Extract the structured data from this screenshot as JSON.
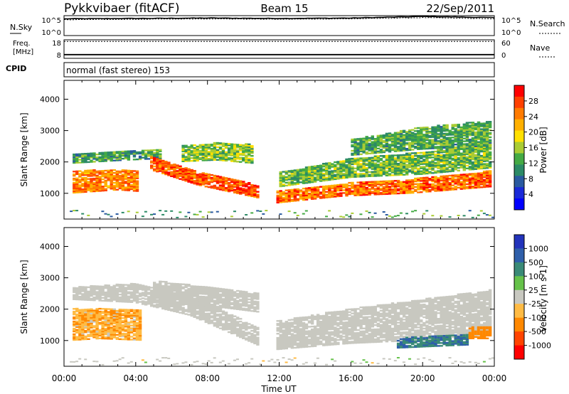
{
  "header": {
    "title": "Pykkvibaer (fitACF)",
    "beam": "Beam 15",
    "date": "22/Sep/2011"
  },
  "sky_panel": {
    "left_label": "N.Sky",
    "right_label": "N.Search",
    "left_ticks": [
      "10^5",
      "10^0"
    ],
    "right_ticks": [
      "10^5",
      "10^0"
    ]
  },
  "freq_panel": {
    "left_label_line1": "Freq.",
    "left_label_line2": "[MHz]",
    "right_label": "Nave",
    "left_ticks": [
      "18",
      "8"
    ],
    "right_ticks": [
      "60",
      "0"
    ]
  },
  "cpid": {
    "label": "CPID",
    "value": "normal (fast stereo) 153"
  },
  "x_axis": {
    "title": "Time UT",
    "ticks": [
      "00:00",
      "04:00",
      "08:00",
      "12:00",
      "16:00",
      "20:00",
      "00:00"
    ]
  },
  "power_colorbar": {
    "label": "Power [dB]",
    "ticks": [
      "28",
      "24",
      "20",
      "16",
      "12",
      "8",
      "4"
    ],
    "colors": [
      "#ff0000",
      "#ff4000",
      "#ff7b00",
      "#ffb000",
      "#ffe000",
      "#aacc33",
      "#44aa44",
      "#2c8a66",
      "#2a5aa0",
      "#1a2ad8",
      "#0000ff"
    ]
  },
  "velocity_colorbar": {
    "label": "Velocity [m s-1]",
    "ticks": [
      "1000",
      "500",
      "100",
      "25",
      "-25",
      "-100",
      "-500",
      "-1000"
    ],
    "colors": [
      "#2233bb",
      "#2f5faa",
      "#3a8a77",
      "#66c24a",
      "#c8c8c0",
      "#ffbb44",
      "#ff8800",
      "#ff4400",
      "#ff0000"
    ]
  },
  "chart_data": [
    {
      "type": "line",
      "title": "N.Sky / N.Search",
      "x": [
        "00:00",
        "04:00",
        "08:00",
        "12:00",
        "16:00",
        "20:00",
        "00:00"
      ],
      "series": [
        {
          "name": "N.Sky",
          "values": [
            4.2,
            4.3,
            4.4,
            4.3,
            4.4,
            4.8,
            4.5
          ]
        },
        {
          "name": "N.Search",
          "values": [
            4.0,
            4.1,
            4.2,
            4.1,
            4.2,
            4.5,
            4.2
          ]
        }
      ],
      "ylim": [
        0,
        5
      ],
      "log_scale": true
    },
    {
      "type": "line",
      "title": "Freq / Nave",
      "x": [
        "00:00",
        "04:00",
        "08:00",
        "12:00",
        "16:00",
        "20:00",
        "00:00"
      ],
      "series": [
        {
          "name": "Freq",
          "values": [
            10,
            10,
            10,
            10,
            10,
            10,
            10
          ]
        },
        {
          "name": "Nave",
          "values": [
            55,
            55,
            55,
            55,
            55,
            55,
            55
          ]
        }
      ],
      "ylim": [
        8,
        18
      ]
    },
    {
      "type": "heatmap",
      "title": "Power [dB]",
      "xlabel": "Time UT",
      "ylabel": "Slant Range [km]",
      "xlim": [
        0,
        24
      ],
      "ylim": [
        180,
        4600
      ],
      "yticks": [
        1000,
        2000,
        3000,
        4000
      ],
      "value_range": [
        0,
        30
      ],
      "bands": [
        {
          "t": [
            0.5,
            3.0,
            4.2
          ],
          "r0": [
            1000,
            1100,
            1050
          ],
          "r1": [
            1700,
            1750,
            1700
          ],
          "v": 23,
          "noise": 4
        },
        {
          "t": [
            0.5,
            3.5,
            5.5
          ],
          "r0": [
            1950,
            2050,
            2100
          ],
          "r1": [
            2250,
            2350,
            2400
          ],
          "v": 11,
          "noise": 4
        },
        {
          "t": [
            4.8,
            7.5,
            10.8
          ],
          "r0": [
            1750,
            1250,
            850
          ],
          "r1": [
            2200,
            1700,
            1250
          ],
          "v": 25,
          "noise": 4
        },
        {
          "t": [
            6.5,
            8.5,
            10.5
          ],
          "r0": [
            2000,
            2050,
            1950
          ],
          "r1": [
            2500,
            2600,
            2550
          ],
          "v": 14,
          "noise": 4
        },
        {
          "t": [
            11.8,
            15.5,
            19.5,
            23.8
          ],
          "r0": [
            680,
            900,
            1000,
            1200
          ],
          "r1": [
            1050,
            1300,
            1450,
            1700
          ],
          "v": 24,
          "noise": 5
        },
        {
          "t": [
            12.0,
            16.0,
            20.0,
            23.8
          ],
          "r0": [
            1200,
            1500,
            1600,
            1800
          ],
          "r1": [
            1650,
            2100,
            2300,
            2600
          ],
          "v": 13,
          "noise": 4
        },
        {
          "t": [
            16.0,
            20.0,
            23.8
          ],
          "r0": [
            2200,
            2400,
            2500
          ],
          "r1": [
            2700,
            3100,
            3300
          ],
          "v": 12,
          "noise": 4
        }
      ]
    },
    {
      "type": "heatmap",
      "title": "Velocity [m s-1]",
      "xlabel": "Time UT",
      "ylabel": "Slant Range [km]",
      "xlim": [
        0,
        24
      ],
      "ylim": [
        180,
        4600
      ],
      "yticks": [
        1000,
        2000,
        3000,
        4000
      ],
      "value_range": [
        -1200,
        1200
      ],
      "bands": [
        {
          "t": [
            0.5,
            2.0,
            4.3
          ],
          "r0": [
            1000,
            1050,
            1000
          ],
          "r1": [
            2000,
            2000,
            1950
          ],
          "v": -80,
          "noise": 60
        },
        {
          "t": [
            0.5,
            4.0,
            7.0,
            10.8
          ],
          "r0": [
            2300,
            2200,
            1800,
            850
          ],
          "r1": [
            2700,
            2800,
            2500,
            1400
          ],
          "v": 0,
          "noise": 10
        },
        {
          "t": [
            5.0,
            8.0,
            10.8
          ],
          "r0": [
            2200,
            2100,
            1900
          ],
          "r1": [
            2900,
            2700,
            2500
          ],
          "v": 0,
          "noise": 10
        },
        {
          "t": [
            11.8,
            16.0,
            20.0,
            23.8
          ],
          "r0": [
            700,
            900,
            1000,
            1200
          ],
          "r1": [
            1600,
            2000,
            2300,
            2600
          ],
          "v": 0,
          "noise": 10
        },
        {
          "t": [
            18.5,
            20.5,
            22.5
          ],
          "r0": [
            750,
            800,
            850
          ],
          "r1": [
            1050,
            1150,
            1200
          ],
          "v": 450,
          "noise": 200
        },
        {
          "t": [
            22.5,
            23.8
          ],
          "r0": [
            1050,
            1050
          ],
          "r1": [
            1400,
            1450
          ],
          "v": -350,
          "noise": 150
        }
      ]
    }
  ]
}
